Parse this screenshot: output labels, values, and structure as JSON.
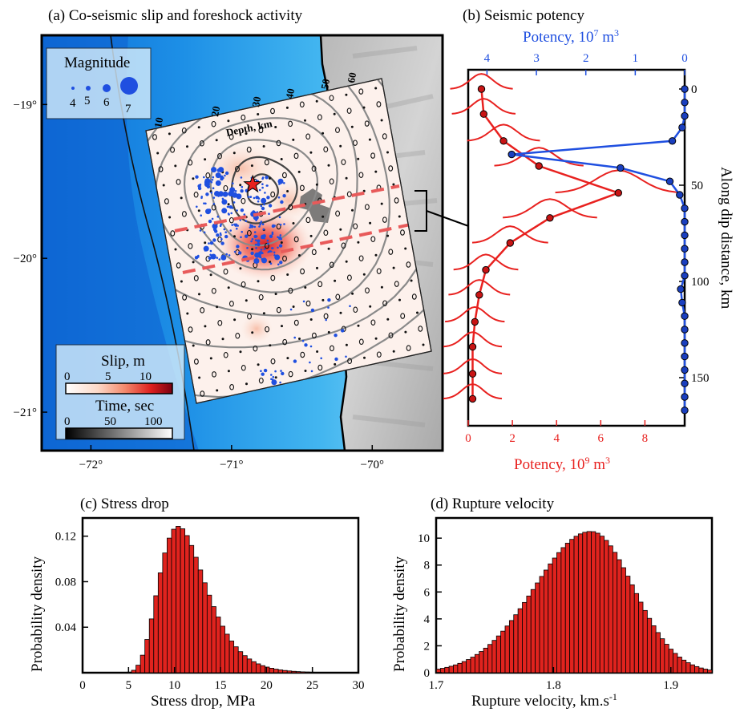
{
  "chart_data": [
    {
      "panel": "a",
      "type": "map",
      "title": "(a) Co-seismic slip and foreshock activity",
      "lon_ticks": [
        "−72°",
        "−71°",
        "−70°"
      ],
      "lat_ticks": [
        "−19°",
        "−20°",
        "−21°"
      ],
      "xlim": [
        -72.35,
        -69.5
      ],
      "ylim": [
        -21.25,
        -18.55
      ],
      "depth_label": "Depth, km",
      "depth_contours": [
        "10",
        "20",
        "30",
        "40",
        "50",
        "60"
      ],
      "hypocenter": {
        "lon": -70.85,
        "lat": -19.52
      },
      "magnitude_legend": {
        "title": "Magnitude",
        "labels": [
          "4",
          "5",
          "6",
          "7"
        ]
      },
      "slip_colorbar": {
        "title": "Slip, m",
        "ticks": [
          "0",
          "5",
          "10"
        ],
        "range": [
          0,
          13
        ]
      },
      "time_colorbar": {
        "title": "Time, sec",
        "ticks": [
          "0",
          "50",
          "100"
        ],
        "range": [
          0,
          130
        ]
      }
    },
    {
      "panel": "b",
      "type": "line",
      "title": "(b) Seismic potency",
      "ylabel": "Along dip distance, km",
      "ylim": [
        -10,
        175
      ],
      "y_ticks": [
        "0",
        "50",
        "100",
        "150"
      ],
      "bottom_axis": {
        "label": "Potency, 10",
        "label_sup": "9",
        "label_unit": " m",
        "unit_sup": "3",
        "ticks": [
          "0",
          "2",
          "4",
          "6",
          "8"
        ],
        "range": [
          0,
          9.8
        ],
        "color": "#e8211f"
      },
      "top_axis": {
        "label": "Potency, 10",
        "label_sup": "7",
        "label_unit": " m",
        "unit_sup": "3",
        "ticks": [
          "4",
          "3",
          "2",
          "1",
          "0"
        ],
        "range": [
          4.38,
          0
        ],
        "color": "#1f4fe0"
      },
      "series": [
        {
          "axis": "bottom",
          "color": "#e8211f",
          "y": [
            0,
            13,
            27,
            40,
            54,
            67,
            80,
            94,
            107,
            121,
            134,
            148,
            161
          ],
          "x": [
            0.6,
            0.7,
            1.6,
            3.2,
            6.8,
            3.7,
            1.9,
            0.8,
            0.5,
            0.3,
            0.2,
            0.2,
            0.2
          ]
        },
        {
          "axis": "top",
          "color": "#1f4fe0",
          "y": [
            0,
            7,
            14,
            20,
            27,
            34,
            41,
            48,
            55,
            62,
            69,
            76,
            83,
            90,
            97,
            104,
            111,
            118,
            125,
            132,
            139,
            146,
            153,
            160,
            167
          ],
          "x": [
            0,
            0,
            0,
            0.05,
            0.25,
            3.5,
            1.3,
            0.3,
            0.1,
            0,
            0,
            0,
            0,
            0,
            0,
            0.08,
            0.05,
            0,
            0,
            0,
            0,
            0,
            0,
            0,
            0
          ]
        }
      ]
    },
    {
      "panel": "c",
      "type": "histogram",
      "title": "(c) Stress drop",
      "xlabel": "Stress drop, MPa",
      "ylabel": "Probability density",
      "xlim": [
        0,
        30
      ],
      "ylim": [
        0,
        0.136
      ],
      "x_ticks": [
        "0",
        "5",
        "10",
        "15",
        "20",
        "25",
        "30"
      ],
      "y_ticks": [
        "0.04",
        "0.08",
        "0.12"
      ],
      "peak_x": 11.2,
      "peak_y": 0.123
    },
    {
      "panel": "d",
      "type": "histogram",
      "title": "(d) Rupture velocity",
      "xlabel": "Rupture velocity, km.s",
      "xlabel_sup": "-1",
      "ylabel": "Probability density",
      "xlim": [
        1.7,
        1.935
      ],
      "ylim": [
        0,
        11.5
      ],
      "x_ticks": [
        "1.7",
        "1.8",
        "1.9"
      ],
      "y_ticks": [
        "0",
        "2",
        "4",
        "6",
        "8",
        "10"
      ],
      "peak_x": 1.832,
      "peak_y": 10.5
    }
  ]
}
